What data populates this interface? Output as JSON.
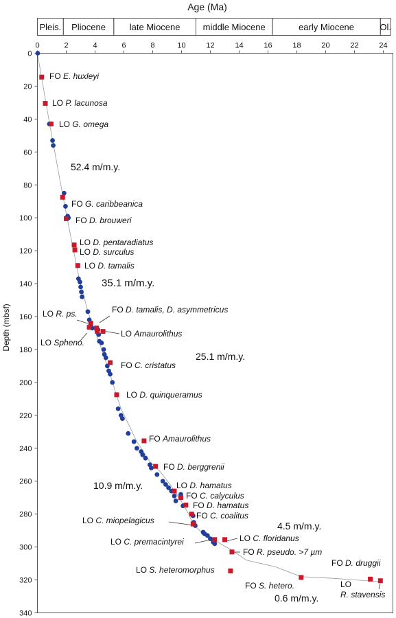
{
  "chart_data": {
    "type": "scatter",
    "title": "Age (Ma)",
    "ylabel": "Depth (mbsf)",
    "xlim": [
      0,
      24.5
    ],
    "ylim": [
      0,
      340
    ],
    "x_ticks": [
      0,
      2,
      4,
      6,
      8,
      10,
      12,
      14,
      16,
      18,
      20,
      22,
      24
    ],
    "y_ticks": [
      0,
      20,
      40,
      60,
      80,
      100,
      120,
      140,
      160,
      180,
      200,
      220,
      240,
      260,
      280,
      300,
      320,
      340
    ],
    "x_axis_position": "top",
    "epochs": [
      {
        "label": "Pleis.",
        "start": 0,
        "end": 1.8
      },
      {
        "label": "Pliocene",
        "start": 1.8,
        "end": 5.3
      },
      {
        "label": "late Miocene",
        "start": 5.3,
        "end": 11.0
      },
      {
        "label": "middle Miocene",
        "start": 11.0,
        "end": 16.3
      },
      {
        "label": "early Miocene",
        "start": 16.3,
        "end": 23.8
      },
      {
        "label": "Ol.",
        "start": 23.8,
        "end": 24.5
      }
    ],
    "colors": {
      "blue": "#1f3f9a",
      "red": "#c81a2a",
      "curve": "#9a9a9a"
    },
    "age_depth_curve": [
      [
        0,
        0
      ],
      [
        0.85,
        43
      ],
      [
        1.9,
        93
      ],
      [
        2.9,
        137
      ],
      [
        3.5,
        157
      ],
      [
        4.3,
        176
      ],
      [
        5.0,
        194
      ],
      [
        5.5,
        208
      ],
      [
        5.8,
        216
      ],
      [
        6.3,
        225
      ],
      [
        6.9,
        236
      ],
      [
        7.8,
        248
      ],
      [
        8.5,
        254
      ],
      [
        9.2,
        262
      ],
      [
        9.9,
        271
      ],
      [
        10.5,
        280
      ],
      [
        10.8,
        286
      ],
      [
        11.5,
        292
      ],
      [
        12.3,
        296
      ],
      [
        13.5,
        302
      ],
      [
        14.5,
        308
      ],
      [
        16.5,
        312
      ],
      [
        18.3,
        318
      ],
      [
        20.5,
        319
      ],
      [
        23.7,
        321
      ]
    ],
    "blue_points": [
      [
        0.02,
        0
      ],
      [
        0.83,
        43
      ],
      [
        0.95,
        43
      ],
      [
        1.05,
        53
      ],
      [
        1.1,
        56
      ],
      [
        1.85,
        85
      ],
      [
        1.95,
        93
      ],
      [
        2.1,
        99
      ],
      [
        2.15,
        100
      ],
      [
        2.85,
        137
      ],
      [
        2.95,
        139
      ],
      [
        3.0,
        142
      ],
      [
        3.05,
        145
      ],
      [
        3.1,
        148
      ],
      [
        3.5,
        157
      ],
      [
        3.6,
        162
      ],
      [
        3.7,
        165
      ],
      [
        3.8,
        167
      ],
      [
        4.2,
        168
      ],
      [
        4.25,
        171
      ],
      [
        4.3,
        175
      ],
      [
        4.45,
        176
      ],
      [
        4.6,
        180
      ],
      [
        4.65,
        183
      ],
      [
        4.75,
        185
      ],
      [
        4.85,
        190
      ],
      [
        4.95,
        193
      ],
      [
        5.05,
        195
      ],
      [
        5.2,
        200
      ],
      [
        5.6,
        216
      ],
      [
        5.8,
        220
      ],
      [
        5.9,
        222
      ],
      [
        6.3,
        231
      ],
      [
        6.7,
        236
      ],
      [
        6.9,
        240
      ],
      [
        7.2,
        242
      ],
      [
        7.3,
        244
      ],
      [
        7.5,
        246
      ],
      [
        7.8,
        250
      ],
      [
        7.9,
        252
      ],
      [
        8.3,
        256
      ],
      [
        8.7,
        260
      ],
      [
        8.9,
        262
      ],
      [
        9.1,
        264
      ],
      [
        9.3,
        266
      ],
      [
        9.5,
        269
      ],
      [
        9.6,
        272
      ],
      [
        9.95,
        268
      ],
      [
        10.1,
        275
      ],
      [
        10.8,
        281
      ],
      [
        10.85,
        285
      ],
      [
        10.95,
        287
      ],
      [
        11.5,
        291
      ],
      [
        11.6,
        292
      ],
      [
        11.8,
        293
      ],
      [
        12.0,
        295
      ],
      [
        12.2,
        297
      ],
      [
        12.3,
        298
      ]
    ],
    "red_points": [
      {
        "x": 0.3,
        "y": 14.5,
        "prefix": "FO",
        "name": "E. huxleyi"
      },
      {
        "x": 0.55,
        "y": 30.5,
        "prefix": "LO",
        "name": "P. lacunosa"
      },
      {
        "x": 0.95,
        "y": 43,
        "prefix": "LO",
        "name": "G. omega"
      },
      {
        "x": 1.75,
        "y": 87.5,
        "prefix": "FO",
        "name": "G. caribbeanica"
      },
      {
        "x": 2.0,
        "y": 100.5,
        "prefix": "FO",
        "name": "D. brouweri"
      },
      {
        "x": 2.55,
        "y": 116.5,
        "prefix": "LO",
        "name": "D. pentaradiatus"
      },
      {
        "x": 2.6,
        "y": 119.5,
        "prefix": "LO",
        "name": "D. surculus"
      },
      {
        "x": 2.8,
        "y": 129,
        "prefix": "LO",
        "name": "D. tamalis"
      },
      {
        "x": 3.7,
        "y": 164,
        "prefix": "LO",
        "name": "R. ps."
      },
      {
        "x": 3.6,
        "y": 166.5,
        "prefix": "LO",
        "name": "Spheno."
      },
      {
        "x": 4.1,
        "y": 167,
        "prefix": "FO",
        "name": "D. tamalis, D. asymmetricus"
      },
      {
        "x": 4.15,
        "y": 169,
        "prefix": "LO",
        "name": "Amaurolithus"
      },
      {
        "x": 4.55,
        "y": 169,
        "prefix": "",
        "name": ""
      },
      {
        "x": 5.05,
        "y": 188,
        "prefix": "FO",
        "name": "C. cristatus"
      },
      {
        "x": 5.5,
        "y": 207.5,
        "prefix": "LO",
        "name": "D. quinqueramus"
      },
      {
        "x": 7.4,
        "y": 235.5,
        "prefix": "FO",
        "name": "Amaurolithus"
      },
      {
        "x": 8.2,
        "y": 251,
        "prefix": "FO",
        "name": "D. berggrenii"
      },
      {
        "x": 9.5,
        "y": 266,
        "prefix": "LO",
        "name": "D. hamatus"
      },
      {
        "x": 9.95,
        "y": 270,
        "prefix": "FO",
        "name": "C. calyculus"
      },
      {
        "x": 10.3,
        "y": 274.5,
        "prefix": "FO",
        "name": "D. hamatus"
      },
      {
        "x": 10.7,
        "y": 280,
        "prefix": "FO",
        "name": "C. coalitus"
      },
      {
        "x": 10.8,
        "y": 286,
        "prefix": "LO",
        "name": "C. miopelagicus"
      },
      {
        "x": 12.3,
        "y": 295.5,
        "prefix": "LO",
        "name": "C. premacintyrei"
      },
      {
        "x": 13.0,
        "y": 295.5,
        "prefix": "LO",
        "name": "C. floridanus"
      },
      {
        "x": 13.5,
        "y": 303,
        "prefix": "FO",
        "name": "R. pseudo. >7 µm"
      },
      {
        "x": 13.4,
        "y": 314.5,
        "prefix": "LO",
        "name": "S. heteromorphus"
      },
      {
        "x": 18.3,
        "y": 318.5,
        "prefix": "FO",
        "name": "S. hetero."
      },
      {
        "x": 23.1,
        "y": 319.5,
        "prefix": "FO",
        "name": "D. druggii"
      },
      {
        "x": 23.8,
        "y": 320.5,
        "prefix": "LO",
        "name": "R. stavensis"
      }
    ],
    "rate_labels": [
      "52.4 m/m.y.",
      "35.1 m/m.y.",
      "25.1 m/m.y.",
      "10.9 m/m.y.",
      "4.5 m/m.y.",
      "0.6 m/m.y."
    ]
  }
}
